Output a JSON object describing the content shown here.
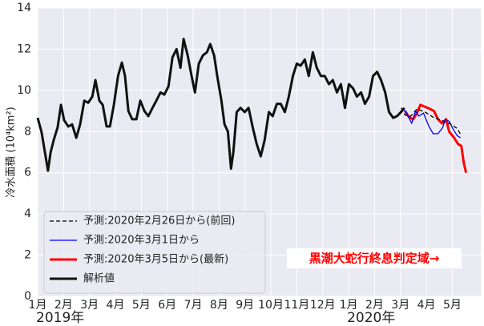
{
  "chart_data": {
    "type": "line",
    "ylabel": "冷水面積 (10⁴km²)",
    "ylim": [
      0,
      14
    ],
    "yticks": [
      0,
      2,
      4,
      6,
      8,
      10,
      12,
      14
    ],
    "xlim": [
      0,
      17.1
    ],
    "xticks": [
      {
        "value": 0,
        "label": "1月"
      },
      {
        "value": 1,
        "label": "2月"
      },
      {
        "value": 2,
        "label": "3月"
      },
      {
        "value": 3,
        "label": "4月"
      },
      {
        "value": 4,
        "label": "5月"
      },
      {
        "value": 5,
        "label": "6月"
      },
      {
        "value": 6,
        "label": "7月"
      },
      {
        "value": 7,
        "label": "8月"
      },
      {
        "value": 8,
        "label": "9月"
      },
      {
        "value": 9,
        "label": "10月"
      },
      {
        "value": 10,
        "label": "11月"
      },
      {
        "value": 11,
        "label": "12月"
      },
      {
        "value": 12,
        "label": "1月"
      },
      {
        "value": 13,
        "label": "2月"
      },
      {
        "value": 14,
        "label": "3月"
      },
      {
        "value": 15,
        "label": "4月"
      },
      {
        "value": 16,
        "label": "5月"
      }
    ],
    "year_ticks": [
      {
        "value": 0,
        "label": "2019年"
      },
      {
        "value": 12,
        "label": "2020年"
      }
    ],
    "grid": true,
    "legend": "lower left",
    "annotation": "黒潮大蛇行終息判定域→",
    "annotation_color": "#ff0000",
    "series": [
      {
        "name": "予測:2020年2月26日から(前回)",
        "color": "#000000",
        "linestyle": "dashed",
        "linewidth": 1.3,
        "x": [
          14.02,
          14.18,
          14.4,
          14.64,
          14.95,
          15.26,
          15.57,
          15.88,
          16.19,
          16.35
        ],
        "values": [
          9.15,
          8.8,
          8.75,
          9.1,
          8.95,
          8.7,
          8.55,
          8.4,
          8.15,
          7.8
        ]
      },
      {
        "name": "予測:2020年3月1日から",
        "color": "#0000ff",
        "linestyle": "solid",
        "linewidth": 1.3,
        "x": [
          14.09,
          14.24,
          14.43,
          14.58,
          14.71,
          14.89,
          15.08,
          15.26,
          15.45,
          15.63,
          15.73,
          15.88,
          16.04,
          16.19,
          16.32
        ],
        "values": [
          9.1,
          8.9,
          8.4,
          9.0,
          8.75,
          8.9,
          8.3,
          7.9,
          7.9,
          8.2,
          8.6,
          8.5,
          8.1,
          7.8,
          7.7
        ]
      },
      {
        "name": "予測:2020年3月5日から(最新)",
        "color": "#ff0000",
        "linestyle": "solid",
        "linewidth": 3,
        "x": [
          14.18,
          14.33,
          14.49,
          14.64,
          14.77,
          14.95,
          15.14,
          15.29,
          15.45,
          15.6,
          15.76,
          15.88,
          16.07,
          16.22,
          16.35,
          16.44,
          16.53
        ],
        "values": [
          9.0,
          8.7,
          8.6,
          8.9,
          9.3,
          9.2,
          9.1,
          9.0,
          8.6,
          8.4,
          8.6,
          8.0,
          7.7,
          7.4,
          7.3,
          6.5,
          6.0
        ]
      },
      {
        "name": "解析値",
        "color": "#111111",
        "linestyle": "solid",
        "linewidth": 3,
        "x": [
          0,
          0.15,
          0.4,
          0.5,
          0.62,
          0.77,
          0.9,
          1.02,
          1.18,
          1.33,
          1.49,
          1.64,
          1.8,
          1.95,
          2.11,
          2.23,
          2.38,
          2.51,
          2.66,
          2.79,
          2.94,
          3.1,
          3.25,
          3.37,
          3.5,
          3.65,
          3.81,
          3.96,
          4.12,
          4.27,
          4.43,
          4.58,
          4.74,
          4.89,
          5.05,
          5.2,
          5.36,
          5.51,
          5.63,
          5.79,
          5.94,
          6.07,
          6.22,
          6.38,
          6.53,
          6.66,
          6.81,
          6.93,
          7.09,
          7.21,
          7.34,
          7.46,
          7.55,
          7.68,
          7.83,
          7.99,
          8.14,
          8.3,
          8.45,
          8.61,
          8.76,
          8.92,
          9.07,
          9.23,
          9.38,
          9.54,
          9.69,
          9.85,
          10.0,
          10.15,
          10.31,
          10.46,
          10.62,
          10.77,
          10.93,
          11.08,
          11.24,
          11.39,
          11.55,
          11.7,
          11.86,
          12.01,
          12.17,
          12.32,
          12.48,
          12.63,
          12.79,
          12.94,
          13.1,
          13.25,
          13.41,
          13.56,
          13.72,
          13.87,
          14.02,
          14.15
        ],
        "values": [
          8.67,
          7.97,
          6.1,
          7.0,
          7.6,
          8.2,
          9.3,
          8.55,
          8.25,
          8.35,
          7.7,
          8.35,
          9.5,
          9.4,
          9.7,
          10.5,
          9.5,
          9.3,
          8.25,
          8.25,
          9.3,
          10.7,
          11.35,
          10.7,
          9.0,
          8.6,
          8.6,
          9.5,
          9.0,
          8.75,
          9.15,
          9.5,
          9.9,
          9.8,
          10.2,
          11.6,
          12.0,
          11.1,
          12.5,
          11.7,
          10.7,
          9.9,
          11.3,
          11.7,
          11.85,
          12.25,
          11.7,
          10.7,
          9.5,
          8.35,
          8.0,
          6.2,
          7.0,
          8.95,
          9.15,
          8.95,
          9.15,
          8.2,
          7.4,
          6.8,
          7.6,
          8.95,
          8.75,
          9.35,
          9.35,
          8.95,
          9.7,
          10.7,
          11.3,
          11.2,
          11.5,
          10.7,
          11.85,
          11.1,
          10.7,
          10.7,
          10.3,
          10.5,
          9.9,
          10.3,
          9.15,
          10.3,
          10.1,
          9.7,
          9.9,
          9.35,
          9.7,
          10.7,
          10.9,
          10.5,
          9.9,
          8.95,
          8.67,
          8.75,
          8.95,
          9.15
        ]
      }
    ]
  }
}
